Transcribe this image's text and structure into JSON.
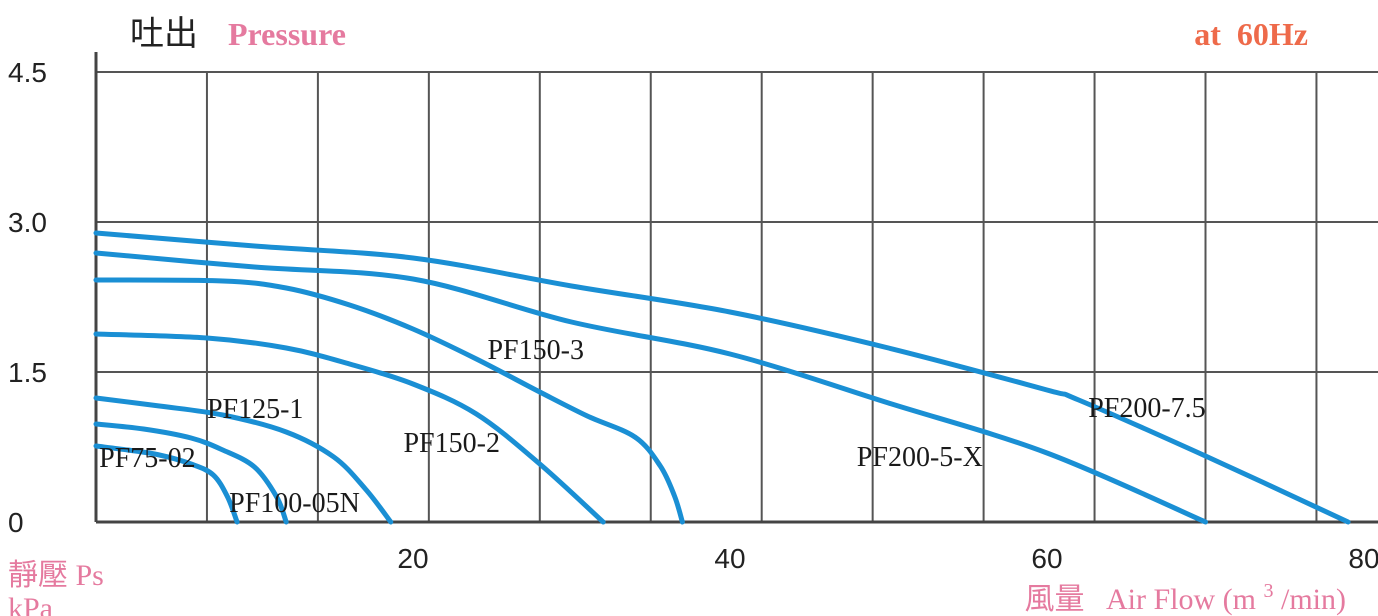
{
  "header": {
    "title_cn": "吐出",
    "title_en": "Pressure",
    "frequency": "at  60Hz"
  },
  "y_axis": {
    "label_cn": "靜壓 Ps",
    "unit": "kPa"
  },
  "x_axis": {
    "label_cn": "風量",
    "label_en": "Air Flow (m",
    "label_sup": "3",
    "label_end": "/min)"
  },
  "colors": {
    "curve": "#1a8fd4",
    "accent_pink": "#e57a9f",
    "accent_orange": "#ee6a4a",
    "grid": "#555555"
  },
  "chart_data": {
    "type": "line",
    "title": "Pressure",
    "xlabel": "Air Flow (m3/min)",
    "ylabel": "靜壓 Ps kPa",
    "xlim": [
      0,
      84
    ],
    "ylim": [
      0,
      4.5
    ],
    "x_ticks": [
      "20",
      "40",
      "60",
      "80"
    ],
    "y_ticks": [
      "0",
      "1.5",
      "3.0",
      "4.5"
    ],
    "grid": true,
    "series": [
      {
        "name": "PF75-02",
        "label_at": [
          0.2,
          0.55
        ],
        "points": [
          [
            0,
            0.76
          ],
          [
            2,
            0.72
          ],
          [
            4,
            0.67
          ],
          [
            6,
            0.58
          ],
          [
            7.4,
            0.47
          ],
          [
            8.3,
            0.25
          ],
          [
            8.9,
            0
          ]
        ]
      },
      {
        "name": "PF100-05N",
        "label_at": [
          8.4,
          0.1
        ],
        "points": [
          [
            0,
            0.98
          ],
          [
            3,
            0.93
          ],
          [
            6,
            0.84
          ],
          [
            8,
            0.72
          ],
          [
            10,
            0.55
          ],
          [
            11.4,
            0.25
          ],
          [
            12,
            0
          ]
        ]
      },
      {
        "name": "PF125-1",
        "label_at": [
          7,
          1.04
        ],
        "points": [
          [
            0,
            1.24
          ],
          [
            4,
            1.16
          ],
          [
            8,
            1.07
          ],
          [
            12,
            0.9
          ],
          [
            15,
            0.65
          ],
          [
            17,
            0.33
          ],
          [
            18.6,
            0
          ]
        ]
      },
      {
        "name": "PF150-2",
        "label_at": [
          19.4,
          0.7
        ],
        "points": [
          [
            0,
            1.88
          ],
          [
            7,
            1.84
          ],
          [
            12,
            1.74
          ],
          [
            16,
            1.58
          ],
          [
            20,
            1.38
          ],
          [
            24,
            1.08
          ],
          [
            28,
            0.58
          ],
          [
            32,
            0
          ]
        ]
      },
      {
        "name": "PF150-3",
        "label_at": [
          24.7,
          1.63
        ],
        "points": [
          [
            0,
            2.42
          ],
          [
            8,
            2.41
          ],
          [
            12,
            2.34
          ],
          [
            16,
            2.17
          ],
          [
            20,
            1.93
          ],
          [
            24,
            1.63
          ],
          [
            28,
            1.3
          ],
          [
            31,
            1.06
          ],
          [
            34,
            0.85
          ],
          [
            35.6,
            0.56
          ],
          [
            36.5,
            0.26
          ],
          [
            37,
            0
          ]
        ]
      },
      {
        "name": "PF200-5-X",
        "label_at": [
          48,
          0.56
        ],
        "points": [
          [
            0,
            2.69
          ],
          [
            10,
            2.55
          ],
          [
            20,
            2.43
          ],
          [
            30,
            2.0
          ],
          [
            40,
            1.68
          ],
          [
            50,
            1.19
          ],
          [
            60,
            0.69
          ],
          [
            70,
            0
          ]
        ]
      },
      {
        "name": "PF200-7.5",
        "label_at": [
          62.6,
          1.05
        ],
        "points": [
          [
            0,
            2.89
          ],
          [
            10,
            2.76
          ],
          [
            20,
            2.64
          ],
          [
            30,
            2.36
          ],
          [
            40,
            2.1
          ],
          [
            50,
            1.74
          ],
          [
            60,
            1.32
          ],
          [
            62,
            1.22
          ],
          [
            70,
            0.66
          ],
          [
            79,
            0
          ]
        ]
      }
    ]
  }
}
